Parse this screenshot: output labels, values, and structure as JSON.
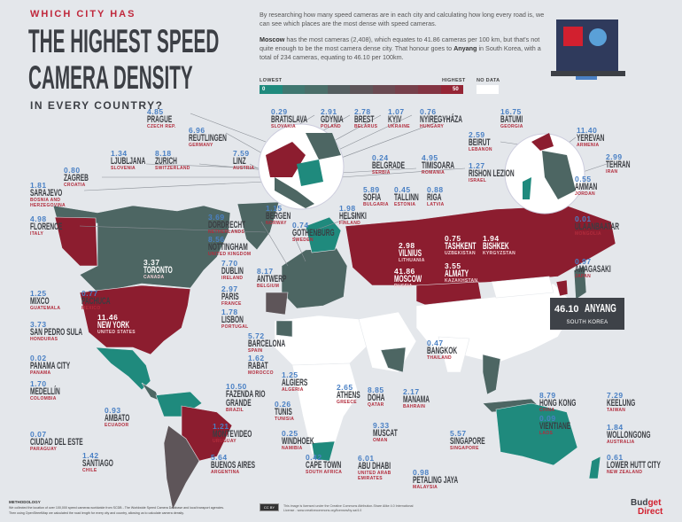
{
  "header": {
    "kicker": "WHICH CITY HAS",
    "title_line1": "THE HIGHEST SPEED",
    "title_line2": "CAMERA DENSITY",
    "subtitle": "IN EVERY COUNTRY?"
  },
  "intro": {
    "p1": "By researching how many speed cameras are in each city and calculating how long every road is, we can see which places are the most dense with speed cameras.",
    "p2_bold1": "Moscow",
    "p2_a": " has the most cameras (2,408), which equates to 41.86 cameras per 100 km, but that's not quite enough to be the most camera dense city. That honour goes to ",
    "p2_bold2": "Anyang",
    "p2_b": " in South Korea, with a total of 234 cameras, equating to 46.10 per 100km."
  },
  "legend": {
    "lowest": "LOWEST",
    "highest": "HIGHEST",
    "no_data": "NO DATA",
    "min": "0",
    "max": "50",
    "colors": [
      "#1f8a7d",
      "#3f7770",
      "#4a6e69",
      "#545e60",
      "#5e5559",
      "#6a4a52",
      "#76404b",
      "#833443",
      "#952535"
    ]
  },
  "colors": {
    "teal": "#1f8a7d",
    "slate": "#4d6663",
    "red": "#8c1d2f",
    "no_data": "#ffffff",
    "value": "#4a80c4",
    "country": "#b22c3c"
  },
  "cities": [
    {
      "v": "4.85",
      "c": "PRAGUE",
      "k": "CZECH REP."
    },
    {
      "v": "6.96",
      "c": "REUTLINGEN",
      "k": "GERMANY"
    },
    {
      "v": "1.34",
      "c": "LJUBLJANA",
      "k": "SLOVENIA"
    },
    {
      "v": "8.18",
      "c": "ZURICH",
      "k": "SWITZERLAND"
    },
    {
      "v": "7.59",
      "c": "LINZ",
      "k": "AUSTRIA"
    },
    {
      "v": "0.80",
      "c": "ZAGREB",
      "k": "CROATIA"
    },
    {
      "v": "1.81",
      "c": "SARAJEVO",
      "k": "BOSNIA AND HERZEGOVINA"
    },
    {
      "v": "4.98",
      "c": "FLORENCE",
      "k": "ITALY"
    },
    {
      "v": "3.37",
      "c": "TORONTO",
      "k": "CANADA"
    },
    {
      "v": "3.69",
      "c": "DORDRECHT",
      "k": "NETHERLANDS"
    },
    {
      "v": "8.56",
      "c": "NOTTINGHAM",
      "k": "UNITED KINGDOM"
    },
    {
      "v": "7.70",
      "c": "DUBLIN",
      "k": "IRELAND"
    },
    {
      "v": "8.17",
      "c": "ANTWERP",
      "k": "BELGIUM"
    },
    {
      "v": "2.97",
      "c": "PARIS",
      "k": "FRANCE"
    },
    {
      "v": "1.78",
      "c": "LISBON",
      "k": "PORTUGAL"
    },
    {
      "v": "5.72",
      "c": "BARCELONA",
      "k": "SPAIN"
    },
    {
      "v": "1.62",
      "c": "RABAT",
      "k": "MOROCCO"
    },
    {
      "v": "1.25",
      "c": "ALGIERS",
      "k": "ALGERIA"
    },
    {
      "v": "10.50",
      "c": "FAZENDA RIO GRANDE",
      "k": "BRAZIL"
    },
    {
      "v": "0.26",
      "c": "TUNIS",
      "k": "TUNISIA"
    },
    {
      "v": "1.21",
      "c": "MONTEVIDEO",
      "k": "URUGUAY"
    },
    {
      "v": "0.25",
      "c": "WINDHOEK",
      "k": "NAMIBIA"
    },
    {
      "v": "5.64",
      "c": "BUENOS AIRES",
      "k": "ARGENTINA"
    },
    {
      "v": "0.42",
      "c": "CAPE TOWN",
      "k": "SOUTH AFRICA"
    },
    {
      "v": "1.25",
      "c": "MIXCO",
      "k": "GUATEMALA"
    },
    {
      "v": "0.77",
      "c": "PACHUCA",
      "k": "MEXICO"
    },
    {
      "v": "11.46",
      "c": "NEW YORK",
      "k": "UNITED STATES"
    },
    {
      "v": "3.73",
      "c": "SAN PEDRO SULA",
      "k": "HONDURAS"
    },
    {
      "v": "0.02",
      "c": "PANAMA CITY",
      "k": "PANAMA"
    },
    {
      "v": "1.70",
      "c": "MEDELLÍN",
      "k": "COLOMBIA"
    },
    {
      "v": "0.93",
      "c": "AMBATO",
      "k": "ECUADOR"
    },
    {
      "v": "0.07",
      "c": "CIUDAD DEL ESTE",
      "k": "PARAGUAY"
    },
    {
      "v": "1.42",
      "c": "SANTIAGO",
      "k": "CHILE"
    },
    {
      "v": "0.29",
      "c": "BRATISLAVA",
      "k": "SLOVAKIA"
    },
    {
      "v": "2.91",
      "c": "GDYNIA",
      "k": "POLAND"
    },
    {
      "v": "2.78",
      "c": "BREST",
      "k": "BELARUS"
    },
    {
      "v": "1.07",
      "c": "KYIV",
      "k": "UKRAINE"
    },
    {
      "v": "0.76",
      "c": "NYÍREGYHÁZA",
      "k": "HUNGARY"
    },
    {
      "v": "0.24",
      "c": "BELGRADE",
      "k": "SERBIA"
    },
    {
      "v": "4.95",
      "c": "TIMISOARA",
      "k": "ROMANIA"
    },
    {
      "v": "5.89",
      "c": "SOFIA",
      "k": "BULGARIA"
    },
    {
      "v": "0.45",
      "c": "TALLINN",
      "k": "ESTONIA"
    },
    {
      "v": "0.88",
      "c": "RIGA",
      "k": "LATVIA"
    },
    {
      "v": "1.15",
      "c": "BERGEN",
      "k": "NORWAY"
    },
    {
      "v": "0.74",
      "c": "GOTHENBURG",
      "k": "SWEDEN"
    },
    {
      "v": "1.98",
      "c": "HELSINKI",
      "k": "FINLAND"
    },
    {
      "v": "2.98",
      "c": "VILNIUS",
      "k": "LITHUANIA"
    },
    {
      "v": "41.86",
      "c": "MOSCOW",
      "k": "RUSSIA"
    },
    {
      "v": "0.75",
      "c": "TASHKENT",
      "k": "UZBEKISTAN"
    },
    {
      "v": "1.94",
      "c": "BISHKEK",
      "k": "KYRGYZSTAN"
    },
    {
      "v": "3.55",
      "c": "ALMATY",
      "k": "KAZAKHSTAN"
    },
    {
      "v": "16.75",
      "c": "BATUMI",
      "k": "GEORGIA"
    },
    {
      "v": "2.59",
      "c": "BEIRUT",
      "k": "LEBANON"
    },
    {
      "v": "11.40",
      "c": "YEREVAN",
      "k": "ARMENIA"
    },
    {
      "v": "2.99",
      "c": "TEHRAN",
      "k": "IRAN"
    },
    {
      "v": "1.27",
      "c": "RISHON LEZION",
      "k": "ISRAEL"
    },
    {
      "v": "0.55",
      "c": "AMMAN",
      "k": "JORDAN"
    },
    {
      "v": "0.01",
      "c": "ULAANBAATAR",
      "k": "MONGOLIA"
    },
    {
      "v": "0.97",
      "c": "AMAGASAKI",
      "k": "JAPAN"
    },
    {
      "v": "0.47",
      "c": "BANGKOK",
      "k": "THAILAND"
    },
    {
      "v": "2.65",
      "c": "ATHENS",
      "k": "GREECE"
    },
    {
      "v": "8.85",
      "c": "DOHA",
      "k": "QATAR"
    },
    {
      "v": "2.17",
      "c": "MANAMA",
      "k": "BAHRAIN"
    },
    {
      "v": "9.33",
      "c": "MUSCAT",
      "k": "OMAN"
    },
    {
      "v": "6.01",
      "c": "ABU DHABI",
      "k": "UNITED ARAB EMIRATES"
    },
    {
      "v": "0.98",
      "c": "PETALING JAYA",
      "k": "MALAYSIA"
    },
    {
      "v": "5.57",
      "c": "SINGAPORE",
      "k": "SINGAPORE"
    },
    {
      "v": "8.79",
      "c": "HONG KONG",
      "k": "CHINA"
    },
    {
      "v": "0.09",
      "c": "VIENTIANE",
      "k": "LAOS"
    },
    {
      "v": "7.29",
      "c": "KEELUNG",
      "k": "TAIWAN"
    },
    {
      "v": "1.84",
      "c": "WOLLONGONG",
      "k": "AUSTRALIA"
    },
    {
      "v": "0.61",
      "c": "LOWER HUTT CITY",
      "k": "NEW ZEALAND"
    }
  ],
  "highlight": {
    "v": "46.10",
    "c": "ANYANG",
    "k": "SOUTH KOREA"
  },
  "footer": {
    "methodology_title": "METHODOLOGY",
    "methodology_1": "We collected the location of over 100,000 speed cameras worldwide from SCDB - The Worldwide Speed Camera Database and local transport agencies.",
    "methodology_2": "Then using OpenStreetMap we calculated the road length for every city and country, allowing us to calculate camera density.",
    "cc_badge": "CC BY",
    "license": "This image is licensed under the Creative Commons Attribution-Share Alike 4.0 International License - www.creativecommons.org/licenses/by-sa/4.0",
    "logo_1a": "Bud",
    "logo_1b": "get",
    "logo_2": "Direct"
  }
}
